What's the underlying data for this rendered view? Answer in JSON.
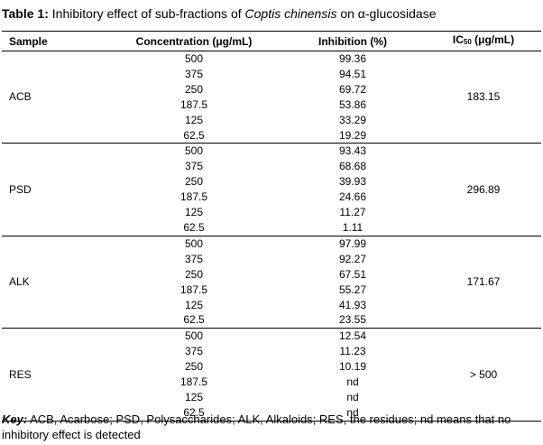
{
  "caption": {
    "label": "Table 1:",
    "text_before": " Inhibitory effect of sub-fractions of ",
    "species": "Coptis chinensis",
    "text_after": " on α-glucosidase"
  },
  "headers": {
    "sample": "Sample",
    "concentration": "Concentration (μg/mL)",
    "inhibition": "Inhibition (%)",
    "ic50_prefix": "IC",
    "ic50_sub": "50",
    "ic50_suffix": " (μg/mL)"
  },
  "groups": [
    {
      "sample": "ACB",
      "ic50": "183.15",
      "rows": [
        {
          "concentration": "500",
          "inhibition": "99.36"
        },
        {
          "concentration": "375",
          "inhibition": "94.51"
        },
        {
          "concentration": "250",
          "inhibition": "69.72"
        },
        {
          "concentration": "187.5",
          "inhibition": "53.86"
        },
        {
          "concentration": "125",
          "inhibition": "33.29"
        },
        {
          "concentration": "62.5",
          "inhibition": "19.29"
        }
      ]
    },
    {
      "sample": "PSD",
      "ic50": "296.89",
      "rows": [
        {
          "concentration": "500",
          "inhibition": "93.43"
        },
        {
          "concentration": "375",
          "inhibition": "68.68"
        },
        {
          "concentration": "250",
          "inhibition": "39.93"
        },
        {
          "concentration": "187.5",
          "inhibition": "24.66"
        },
        {
          "concentration": "125",
          "inhibition": "11.27"
        },
        {
          "concentration": "62.5",
          "inhibition": "1.11"
        }
      ]
    },
    {
      "sample": "ALK",
      "ic50": "171.67",
      "rows": [
        {
          "concentration": "500",
          "inhibition": "97.99"
        },
        {
          "concentration": "375",
          "inhibition": "92.27"
        },
        {
          "concentration": "250",
          "inhibition": "67.51"
        },
        {
          "concentration": "187.5",
          "inhibition": "55.27"
        },
        {
          "concentration": "125",
          "inhibition": "41.93"
        },
        {
          "concentration": "62.5",
          "inhibition": "23.55"
        }
      ]
    },
    {
      "sample": "RES",
      "ic50": "> 500",
      "rows": [
        {
          "concentration": "500",
          "inhibition": "12.54"
        },
        {
          "concentration": "375",
          "inhibition": "11.23"
        },
        {
          "concentration": "250",
          "inhibition": "10.19"
        },
        {
          "concentration": "187.5",
          "inhibition": "nd"
        },
        {
          "concentration": "125",
          "inhibition": "nd"
        },
        {
          "concentration": "62.5",
          "inhibition": "nd"
        }
      ]
    }
  ],
  "key": {
    "label": "Key:",
    "text": " ACB, Acarbose; PSD, Polysaccharides; ALK, Alkaloids; RES, the residues; nd means that no inhibitory effect is detected"
  }
}
